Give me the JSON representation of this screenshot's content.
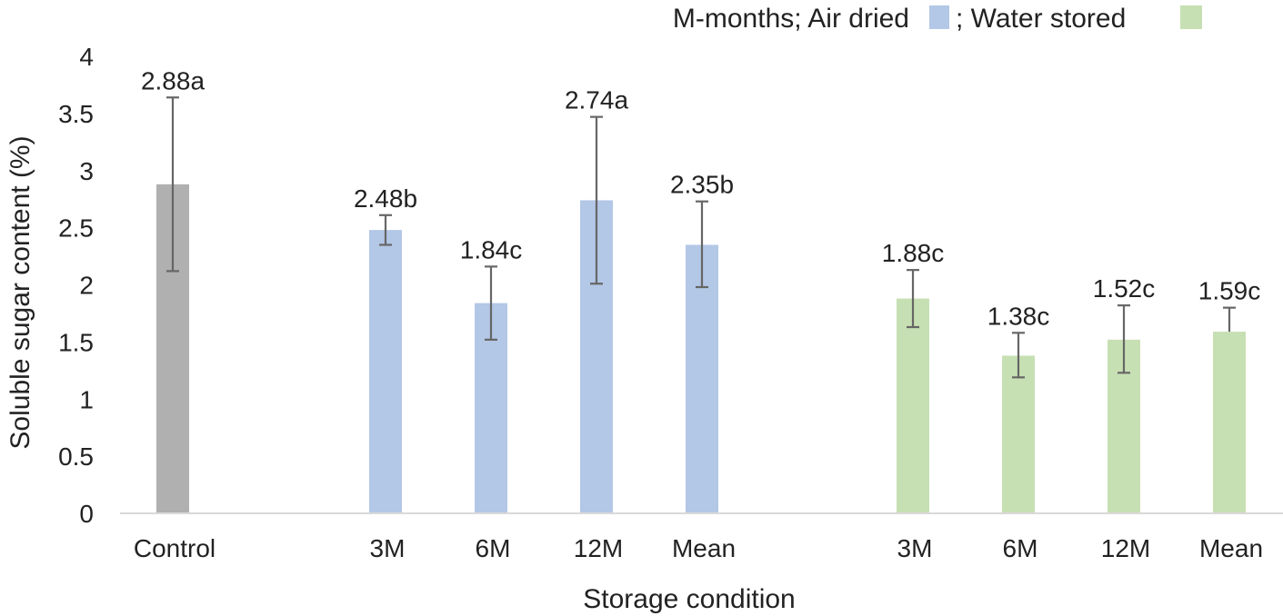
{
  "chart_data": {
    "type": "bar",
    "title": "",
    "xlabel": "Storage condition",
    "ylabel": "Soluble sugar content (%)",
    "ylim": [
      0,
      4
    ],
    "yticks": [
      0,
      0.5,
      1,
      1.5,
      2,
      2.5,
      3,
      3.5,
      4
    ],
    "ytick_labels": [
      "0",
      "0.5",
      "1",
      "1.5",
      "2",
      "2.5",
      "3",
      "3.5",
      "4"
    ],
    "legend": {
      "position": "top-right",
      "prefix": "M-months; Air dried",
      "separator": "; Water stored",
      "air_color": "#b3c7e6",
      "water_color": "#c7e0b3"
    },
    "groups": [
      {
        "name": "Control",
        "color": "#b0b0b0"
      },
      {
        "name": "Air dried",
        "color": "#b3c7e6"
      },
      {
        "name": "Water stored",
        "color": "#c7e0b3"
      }
    ],
    "bars": [
      {
        "label": "Control",
        "group": 0,
        "value": 2.88,
        "error_low": 2.12,
        "error_high": 3.64,
        "data_label": "2.88a"
      },
      {
        "label": "3M",
        "group": 1,
        "value": 2.48,
        "error_low": 2.35,
        "error_high": 2.61,
        "data_label": "2.48b"
      },
      {
        "label": "6M",
        "group": 1,
        "value": 1.84,
        "error_low": 1.52,
        "error_high": 2.16,
        "data_label": "1.84c"
      },
      {
        "label": "12M",
        "group": 1,
        "value": 2.74,
        "error_low": 2.01,
        "error_high": 3.47,
        "data_label": "2.74a"
      },
      {
        "label": "Mean",
        "group": 1,
        "value": 2.35,
        "error_low": 1.98,
        "error_high": 2.73,
        "data_label": "2.35b"
      },
      {
        "label": "3M",
        "group": 2,
        "value": 1.88,
        "error_low": 1.63,
        "error_high": 2.13,
        "data_label": "1.88c"
      },
      {
        "label": "6M",
        "group": 2,
        "value": 1.38,
        "error_low": 1.19,
        "error_high": 1.58,
        "data_label": "1.38c"
      },
      {
        "label": "12M",
        "group": 2,
        "value": 1.52,
        "error_low": 1.23,
        "error_high": 1.82,
        "data_label": "1.52c"
      },
      {
        "label": "Mean",
        "group": 2,
        "value": 1.59,
        "error_low": 1.59,
        "error_high": 1.8,
        "data_label": "1.59c"
      }
    ],
    "errorbar_color": "#666666",
    "axis_color": "#d9d9d9"
  }
}
